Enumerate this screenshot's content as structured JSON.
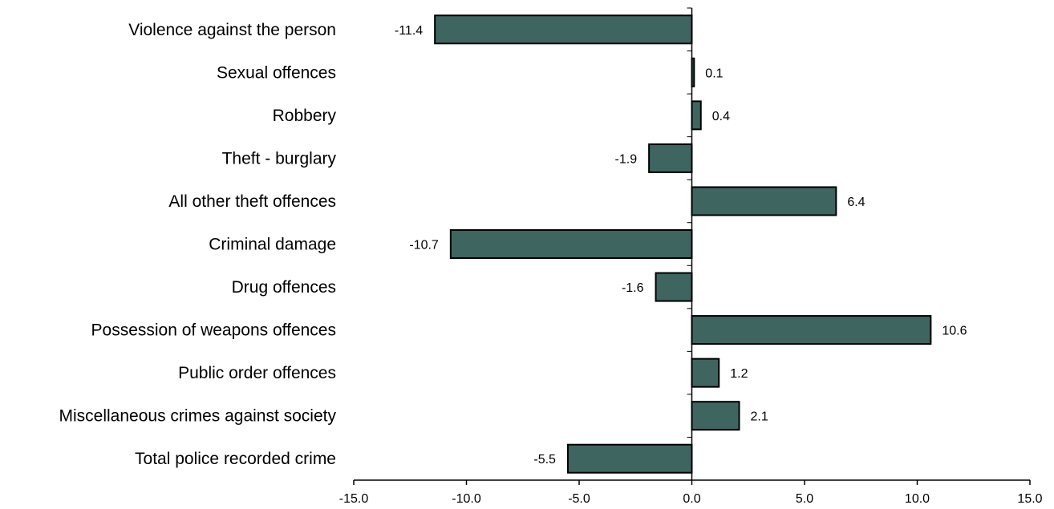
{
  "chart_data": {
    "type": "bar",
    "orientation": "horizontal",
    "categories": [
      "Violence against the person",
      "Sexual offences",
      "Robbery",
      "Theft - burglary",
      "All other theft offences",
      "Criminal damage",
      "Drug offences",
      "Possession of weapons offences",
      "Public order offences",
      "Miscellaneous crimes against society",
      "Total police recorded crime"
    ],
    "values": [
      -11.4,
      0.1,
      0.4,
      -1.9,
      6.4,
      -10.7,
      -1.6,
      10.6,
      1.2,
      2.1,
      -5.5
    ],
    "data_labels": [
      "-11.4",
      "0.1",
      "0.4",
      "-1.9",
      "6.4",
      "-10.7",
      "-1.6",
      "10.6",
      "1.2",
      "2.1",
      "-5.5"
    ],
    "xlim": [
      -15,
      15
    ],
    "xticks": [
      -15,
      -10,
      -5,
      0,
      5,
      10,
      15
    ],
    "xtick_labels": [
      "-15.0",
      "-10.0",
      "-5.0",
      "0.0",
      "5.0",
      "10.0",
      "15.0"
    ],
    "bar_color": "#3f6560",
    "bar_edge_color": "#000000",
    "grid": false,
    "legend": "none",
    "title": "",
    "xlabel": "",
    "ylabel": ""
  }
}
